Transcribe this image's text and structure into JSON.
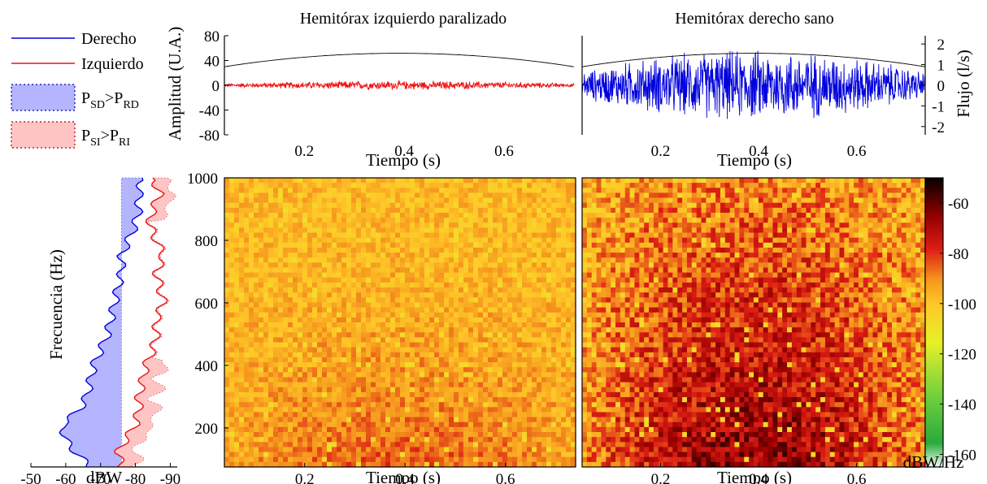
{
  "colors": {
    "right": "#0000dd",
    "left": "#ee1111",
    "flow": "#000000",
    "shade_right": "#b4b4ff",
    "shade_left": "#ffc4c4"
  },
  "legend": {
    "items": [
      {
        "label": "Derecho",
        "kind": "line",
        "color_key": "right"
      },
      {
        "label": "Izquierdo",
        "kind": "line",
        "color_key": "left"
      },
      {
        "label_main": "P",
        "sub1": "SD",
        "mid": ">P",
        "sub2": "RD",
        "kind": "patch",
        "color_key": "shade_right"
      },
      {
        "label_main": "P",
        "sub1": "SI",
        "mid": ">P",
        "sub2": "RI",
        "kind": "patch",
        "color_key": "shade_left"
      }
    ]
  },
  "chart_data": [
    {
      "type": "line",
      "title": "Hemitórax izquierdo paralizado",
      "xlabel": "Tiempo (s)",
      "ylabel": "Amplitud (U.A.)",
      "xlim": [
        0.04,
        0.74
      ],
      "ylim": [
        -80,
        80
      ],
      "x_ticks": [
        0.2,
        0.4,
        0.6
      ],
      "x_tick_labels": [
        "0.2",
        "0.4",
        "0.6"
      ],
      "y_ticks": [
        -80,
        -40,
        0,
        40,
        80
      ],
      "y_tick_labels": [
        "-80",
        "-40",
        "0",
        "40",
        "80"
      ],
      "series": [
        {
          "kind": "noise",
          "color_key": "left",
          "amplitude": 8,
          "t": [
            0.04,
            0.74
          ]
        },
        {
          "kind": "flow_envelope",
          "color_key": "flow",
          "peak": 2.0,
          "t": [
            0.04,
            0.74
          ]
        }
      ]
    },
    {
      "type": "line",
      "title": "Hemitórax derecho sano",
      "xlabel": "Tiempo (s)",
      "ylabel": "Flujo (l/s)",
      "xlim": [
        0.04,
        0.74
      ],
      "ylim": [
        -2.4,
        2.4
      ],
      "x_ticks": [
        0.2,
        0.4,
        0.6
      ],
      "x_tick_labels": [
        "0.2",
        "0.4",
        "0.6"
      ],
      "y_ticks": [
        -2,
        -1,
        0,
        1,
        2
      ],
      "y_tick_labels": [
        "-2",
        "-1",
        "0",
        "1",
        "2"
      ],
      "series": [
        {
          "kind": "noise",
          "color_key": "right",
          "amplitude": 1.9,
          "t": [
            0.04,
            0.74
          ]
        },
        {
          "kind": "flow_envelope",
          "color_key": "flow",
          "peak": 2.0,
          "t": [
            0.04,
            0.74
          ]
        }
      ]
    },
    {
      "type": "area",
      "xlabel": "dBW",
      "ylabel": "Frecuencia (Hz)",
      "xlim": [
        -50,
        -92
      ],
      "ylim": [
        75,
        1000
      ],
      "x_ticks": [
        -50,
        -60,
        -70,
        -80,
        -90
      ],
      "x_tick_labels": [
        "-50",
        "-60",
        "-70",
        "-80",
        "-90"
      ],
      "y_ticks": [
        200,
        400,
        600,
        800,
        1000
      ],
      "y_tick_labels": [
        "200",
        "400",
        "600",
        "800",
        "1000"
      ],
      "series": [
        {
          "name": "Derecho",
          "color_key": "right",
          "freq": [
            75,
            120,
            160,
            210,
            260,
            300,
            350,
            400,
            450,
            500,
            550,
            600,
            650,
            700,
            750,
            800,
            850,
            900,
            950,
            1000
          ],
          "dbw": [
            -67,
            -63,
            -60,
            -59,
            -64,
            -66,
            -67,
            -68,
            -70,
            -72,
            -73,
            -74,
            -75,
            -76,
            -76,
            -78,
            -80,
            -81,
            -81,
            -82
          ]
        },
        {
          "name": "Izquierdo",
          "color_key": "left",
          "freq": [
            75,
            120,
            160,
            210,
            260,
            300,
            350,
            400,
            450,
            500,
            550,
            600,
            650,
            700,
            750,
            800,
            850,
            900,
            950,
            1000
          ],
          "dbw": [
            -76,
            -75,
            -77,
            -80,
            -81,
            -81,
            -82,
            -83,
            -85,
            -86,
            -86,
            -88,
            -87,
            -86,
            -88,
            -86,
            -84,
            -85,
            -87,
            -85
          ]
        }
      ]
    },
    {
      "type": "heatmap",
      "xlabel": "Tiempo (s)",
      "ylabel": "",
      "xlim": [
        0.04,
        0.74
      ],
      "ylim": [
        75,
        1000
      ],
      "x_ticks": [
        0.2,
        0.4,
        0.6
      ],
      "x_tick_labels": [
        "0.2",
        "0.4",
        "0.6"
      ],
      "y_ticks": [
        200,
        400,
        600,
        800,
        1000
      ],
      "y_tick_labels": [
        "200",
        "400",
        "600",
        "800",
        "1000"
      ],
      "intensity": "low",
      "value_range": [
        -165,
        -50
      ]
    },
    {
      "type": "heatmap",
      "xlabel": "Tiempo (s)",
      "ylabel": "",
      "xlim": [
        0.04,
        0.74
      ],
      "ylim": [
        75,
        1000
      ],
      "x_ticks": [
        0.2,
        0.4,
        0.6
      ],
      "x_tick_labels": [
        "0.2",
        "0.4",
        "0.6"
      ],
      "intensity": "high",
      "value_range": [
        -165,
        -50
      ]
    }
  ],
  "colorbar": {
    "label": "dBW/Hz",
    "range": [
      -165,
      -50
    ],
    "ticks": [
      -60,
      -80,
      -100,
      -120,
      -140,
      -160
    ],
    "tick_labels": [
      "-60",
      "-80",
      "-100",
      "-120",
      "-140",
      "-160"
    ]
  }
}
